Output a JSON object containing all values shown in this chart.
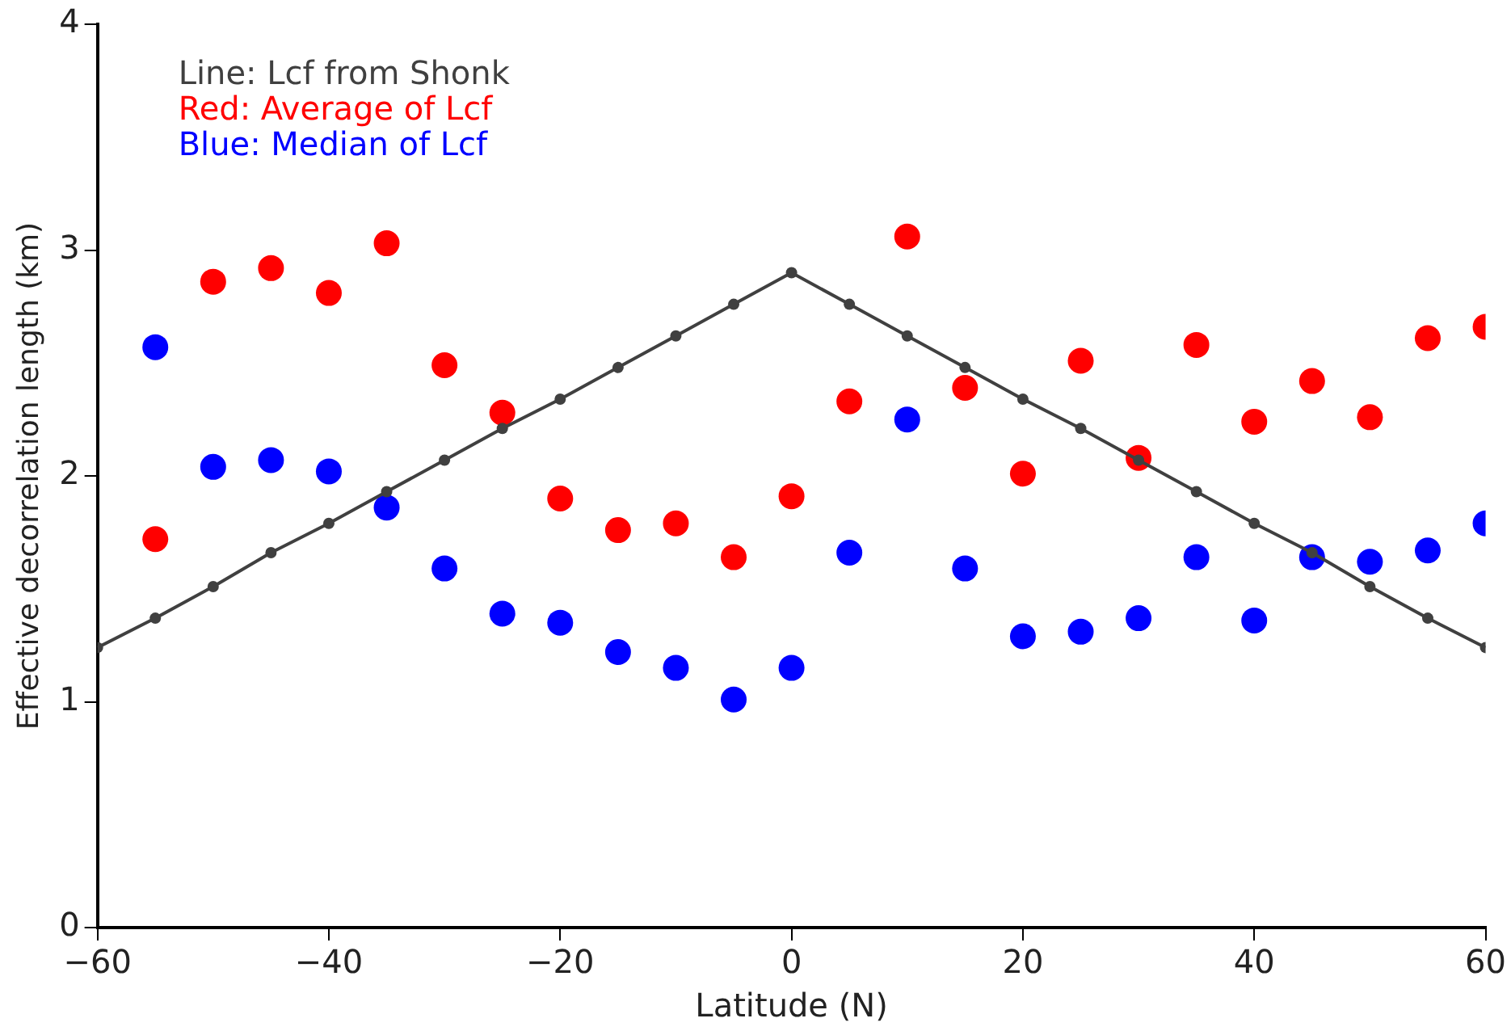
{
  "chart_data": {
    "type": "scatter",
    "xlabel": "Latitude (N)",
    "ylabel": "Effective decorrelation length (km)",
    "x": [
      -55,
      -50,
      -45,
      -40,
      -35,
      -30,
      -25,
      -20,
      -15,
      -10,
      -5,
      0,
      5,
      10,
      15,
      20,
      25,
      30,
      35,
      40,
      45,
      50,
      55,
      60
    ],
    "series": [
      {
        "name": "Line: Lcf from Shonk",
        "type": "line",
        "color": "#404040",
        "marker": "circle",
        "x": [
          -60,
          -55,
          -50,
          -45,
          -40,
          -35,
          -30,
          -25,
          -20,
          -15,
          -10,
          -5,
          0,
          5,
          10,
          15,
          20,
          25,
          30,
          35,
          40,
          45,
          50,
          55,
          60
        ],
        "values": [
          1.24,
          1.37,
          1.51,
          1.66,
          1.79,
          1.93,
          2.07,
          2.21,
          2.34,
          2.48,
          2.62,
          2.76,
          2.9,
          2.76,
          2.62,
          2.48,
          2.34,
          2.21,
          2.07,
          1.93,
          1.79,
          1.66,
          1.51,
          1.37,
          1.24
        ]
      },
      {
        "name": "Red: Average of Lcf",
        "color": "#ff0000",
        "marker": "circle",
        "values": [
          1.72,
          2.86,
          2.92,
          2.81,
          3.03,
          2.49,
          2.28,
          1.9,
          1.76,
          1.79,
          1.64,
          1.91,
          2.33,
          3.06,
          2.39,
          2.01,
          2.51,
          2.08,
          2.58,
          2.24,
          2.42,
          2.26,
          2.61,
          2.66
        ]
      },
      {
        "name": "Blue: Median of Lcf",
        "color": "#0000ff",
        "marker": "circle",
        "values": [
          2.57,
          2.04,
          2.07,
          2.02,
          1.86,
          1.59,
          1.39,
          1.35,
          1.22,
          1.15,
          1.01,
          1.15,
          1.66,
          2.25,
          1.59,
          1.29,
          1.31,
          1.37,
          1.64,
          1.36,
          1.64,
          1.62,
          1.67,
          1.79
        ]
      }
    ],
    "xlim": [
      -60,
      60
    ],
    "xticks": [
      -60,
      -40,
      -20,
      0,
      20,
      40,
      60
    ],
    "ylim": [
      0,
      4
    ],
    "yticks": [
      0,
      1,
      2,
      3,
      4
    ],
    "grid": false,
    "legend": "top left"
  }
}
